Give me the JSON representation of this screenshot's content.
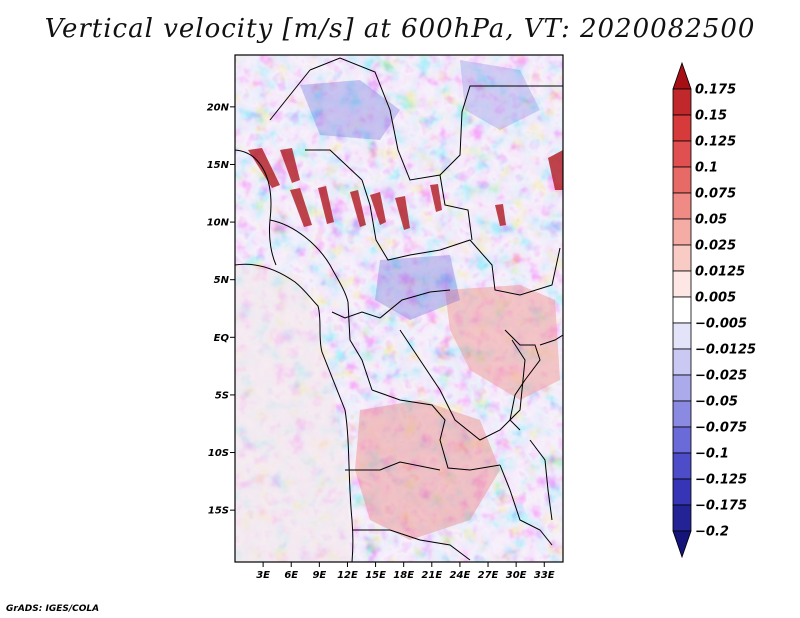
{
  "title": "Vertical velocity [m/s] at 600hPa, VT: 2020082500",
  "credit": "GrADS: IGES/COLA",
  "map": {
    "lon_range": [
      0,
      35
    ],
    "lat_range": [
      -19.5,
      24.5
    ],
    "lat_labels": [
      {
        "text": "20N",
        "lat": 20
      },
      {
        "text": "15N",
        "lat": 15
      },
      {
        "text": "10N",
        "lat": 10
      },
      {
        "text": "5N",
        "lat": 5
      },
      {
        "text": "EQ",
        "lat": 0
      },
      {
        "text": "5S",
        "lat": -5
      },
      {
        "text": "10S",
        "lat": -10
      },
      {
        "text": "15S",
        "lat": -15
      }
    ],
    "lon_labels": [
      {
        "text": "3E",
        "lon": 3
      },
      {
        "text": "6E",
        "lon": 6
      },
      {
        "text": "9E",
        "lon": 9
      },
      {
        "text": "12E",
        "lon": 12
      },
      {
        "text": "15E",
        "lon": 15
      },
      {
        "text": "18E",
        "lon": 18
      },
      {
        "text": "21E",
        "lon": 21
      },
      {
        "text": "24E",
        "lon": 24
      },
      {
        "text": "27E",
        "lon": 27
      },
      {
        "text": "30E",
        "lon": 30
      },
      {
        "text": "33E",
        "lon": 33
      }
    ]
  },
  "colorbar": {
    "levels": [
      "0.175",
      "0.15",
      "0.125",
      "0.1",
      "0.075",
      "0.05",
      "0.025",
      "0.0125",
      "0.005",
      "−0.005",
      "−0.0125",
      "−0.025",
      "−0.05",
      "−0.075",
      "−0.1",
      "−0.125",
      "−0.175",
      "−0.2"
    ],
    "colors": [
      "#a50f15",
      "#c0282b",
      "#d73a3a",
      "#e05050",
      "#e86a66",
      "#ef8a84",
      "#f5aca5",
      "#f9cbc5",
      "#fde6e3",
      "#ffffff",
      "#e3e3fa",
      "#c9c9f3",
      "#ababec",
      "#8a8ae3",
      "#6a6ad8",
      "#4d4dc9",
      "#3535b5",
      "#232396",
      "#14147a"
    ]
  },
  "colors": {
    "positive": "#d73a3a",
    "negative": "#5050d0",
    "border": "#000000"
  }
}
